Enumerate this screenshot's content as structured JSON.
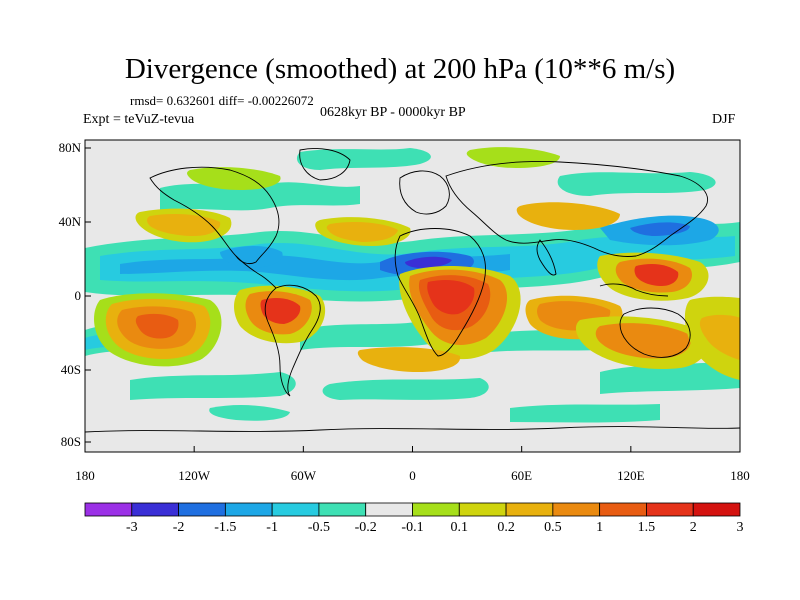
{
  "header": {
    "title": "Divergence (smoothed) at 200 hPa (10**6 m/s)",
    "stats": "rmsd= 0.632601 diff= -0.00226072",
    "experiment": "Expt = teVuZ-tevua",
    "period": "0628kyr BP - 0000kyr BP",
    "season": "DJF"
  },
  "axes": {
    "lat_ticks": [
      "80N",
      "40N",
      "0",
      "40S",
      "80S"
    ],
    "lon_ticks": [
      "180",
      "120W",
      "60W",
      "0",
      "60E",
      "120E",
      "180"
    ]
  },
  "colorbar": {
    "labels": [
      "-3",
      "-2",
      "-1.5",
      "-1",
      "-0.5",
      "-0.2",
      "-0.1",
      "0.1",
      "0.2",
      "0.5",
      "1",
      "1.5",
      "2",
      "3"
    ],
    "colors": [
      "#9b30e6",
      "#3a2fd6",
      "#1f6fe0",
      "#1da7e6",
      "#27cbe0",
      "#3ee0b4",
      "#e8e8e8",
      "#a6df1a",
      "#cfd40e",
      "#e8b10e",
      "#ea8a10",
      "#e85c12",
      "#e5331a",
      "#d4120f"
    ]
  },
  "chart_data": {
    "type": "heatmap",
    "field": "200 hPa divergence difference",
    "xlim": [
      -180,
      180
    ],
    "ylim": [
      -90,
      90
    ],
    "features": [
      {
        "lon": -145,
        "lat": -10,
        "value": 1.5
      },
      {
        "lon": -120,
        "lat": -25,
        "value": 1.0
      },
      {
        "lon": -150,
        "lat": 5,
        "value": -1.0
      },
      {
        "lon": -100,
        "lat": 22,
        "value": -1.0
      },
      {
        "lon": -68,
        "lat": -8,
        "value": 1.5
      },
      {
        "lon": -55,
        "lat": -35,
        "value": 1.0
      },
      {
        "lon": -40,
        "lat": 10,
        "value": -0.5
      },
      {
        "lon": 8,
        "lat": 18,
        "value": -1.5
      },
      {
        "lon": 25,
        "lat": 0,
        "value": 2.0
      },
      {
        "lon": 40,
        "lat": -25,
        "value": 1.0
      },
      {
        "lon": 75,
        "lat": -10,
        "value": 1.0
      },
      {
        "lon": 100,
        "lat": 15,
        "value": -0.5
      },
      {
        "lon": 135,
        "lat": 28,
        "value": -1.0
      },
      {
        "lon": 140,
        "lat": 5,
        "value": 1.5
      },
      {
        "lon": 120,
        "lat": -20,
        "value": 1.0
      },
      {
        "lon": 165,
        "lat": -30,
        "value": 1.0
      },
      {
        "lon": -160,
        "lat": 40,
        "value": 0.5
      },
      {
        "lon": -20,
        "lat": 40,
        "value": 0.5
      }
    ]
  }
}
